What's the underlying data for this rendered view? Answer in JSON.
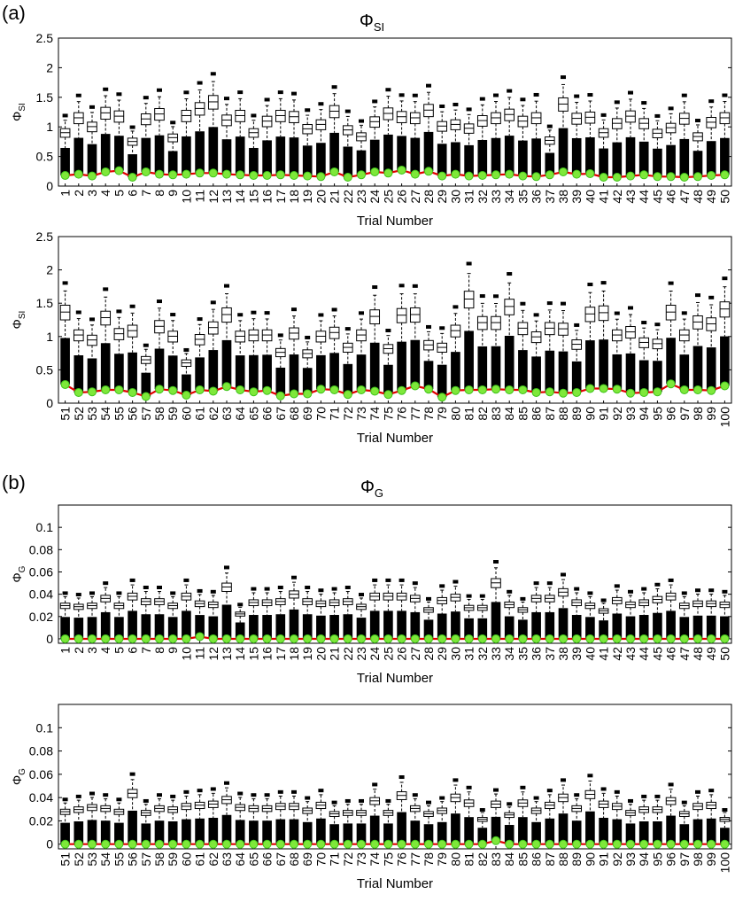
{
  "panels": [
    {
      "label": "(a)",
      "title_main": "Φ",
      "title_sub": "SI"
    },
    {
      "label": "(b)",
      "title_main": "Φ",
      "title_sub": "G"
    }
  ],
  "colors": {
    "box": "#000000",
    "minimum_line": "#e00000",
    "marker_fill": "#7ee83a",
    "marker_edge": "#3fc41a"
  },
  "chart_data": [
    {
      "type": "box",
      "panel": "(a)",
      "ylabel_main": "Φ",
      "ylabel_sub": "SI",
      "xlabel": "Trial Number",
      "ylim": [
        0,
        2.5
      ],
      "yticks": [
        0,
        0.5,
        1,
        1.5,
        2,
        2.5
      ],
      "ytick_labels": [
        "0",
        "0.5",
        "1",
        "1.5",
        "2",
        "2.5"
      ],
      "categories": [
        "1",
        "2",
        "3",
        "4",
        "5",
        "6",
        "7",
        "8",
        "9",
        "10",
        "11",
        "12",
        "13",
        "14",
        "15",
        "16",
        "17",
        "18",
        "19",
        "20",
        "21",
        "22",
        "23",
        "24",
        "25",
        "26",
        "27",
        "28",
        "29",
        "30",
        "31",
        "32",
        "33",
        "34",
        "35",
        "36",
        "37",
        "38",
        "39",
        "40",
        "41",
        "42",
        "43",
        "44",
        "45",
        "46",
        "47",
        "48",
        "49",
        "50"
      ],
      "box_upper": [
        0.97,
        1.24,
        1.08,
        1.33,
        1.27,
        0.81,
        1.22,
        1.31,
        0.88,
        1.28,
        1.41,
        1.53,
        1.2,
        1.28,
        0.97,
        1.18,
        1.28,
        1.26,
        1.04,
        1.12,
        1.36,
        1.02,
        0.9,
        1.17,
        1.32,
        1.26,
        1.24,
        1.38,
        1.09,
        1.12,
        1.05,
        1.19,
        1.24,
        1.3,
        1.18,
        1.24,
        0.83,
        1.49,
        1.23,
        1.25,
        0.97,
        1.14,
        1.27,
        1.14,
        0.96,
        1.06,
        1.23,
        0.9,
        1.16,
        1.24
      ],
      "box_lower": [
        0.18,
        0.2,
        0.17,
        0.24,
        0.26,
        0.15,
        0.24,
        0.2,
        0.19,
        0.2,
        0.22,
        0.22,
        0.2,
        0.19,
        0.18,
        0.18,
        0.19,
        0.18,
        0.17,
        0.16,
        0.24,
        0.15,
        0.19,
        0.24,
        0.22,
        0.27,
        0.2,
        0.25,
        0.17,
        0.2,
        0.17,
        0.18,
        0.19,
        0.2,
        0.17,
        0.16,
        0.19,
        0.24,
        0.2,
        0.21,
        0.15,
        0.15,
        0.17,
        0.19,
        0.16,
        0.16,
        0.15,
        0.16,
        0.18,
        0.19
      ],
      "minimum": [
        0.18,
        0.2,
        0.17,
        0.24,
        0.26,
        0.15,
        0.24,
        0.2,
        0.19,
        0.2,
        0.22,
        0.22,
        0.2,
        0.19,
        0.18,
        0.18,
        0.19,
        0.18,
        0.17,
        0.16,
        0.24,
        0.15,
        0.19,
        0.24,
        0.22,
        0.27,
        0.2,
        0.25,
        0.17,
        0.2,
        0.17,
        0.18,
        0.19,
        0.2,
        0.17,
        0.16,
        0.19,
        0.24,
        0.2,
        0.21,
        0.15,
        0.15,
        0.17,
        0.19,
        0.16,
        0.16,
        0.15,
        0.16,
        0.18,
        0.19
      ]
    },
    {
      "type": "box",
      "panel": "(a)",
      "ylabel_main": "Φ",
      "ylabel_sub": "SI",
      "xlabel": "Trial Number",
      "ylim": [
        0,
        2.5
      ],
      "yticks": [
        0,
        0.5,
        1,
        1.5,
        2,
        2.5
      ],
      "ytick_labels": [
        "0",
        "0.5",
        "1",
        "1.5",
        "2",
        "2.5"
      ],
      "categories": [
        "51",
        "52",
        "53",
        "54",
        "55",
        "56",
        "57",
        "58",
        "59",
        "60",
        "61",
        "62",
        "63",
        "64",
        "65",
        "66",
        "67",
        "68",
        "69",
        "70",
        "71",
        "72",
        "73",
        "74",
        "75",
        "76",
        "77",
        "78",
        "79",
        "80",
        "81",
        "82",
        "83",
        "84",
        "85",
        "86",
        "87",
        "88",
        "89",
        "90",
        "91",
        "92",
        "93",
        "94",
        "95",
        "96",
        "97",
        "98",
        "99",
        "100"
      ],
      "box_upper": [
        1.47,
        1.1,
        1.02,
        1.38,
        1.12,
        1.17,
        0.7,
        1.24,
        1.08,
        0.65,
        1.03,
        1.22,
        1.43,
        1.08,
        1.1,
        1.1,
        0.82,
        1.13,
        0.8,
        1.08,
        1.14,
        0.9,
        1.1,
        1.4,
        0.88,
        1.42,
        1.43,
        0.94,
        0.9,
        1.17,
        1.68,
        1.3,
        1.3,
        1.56,
        1.21,
        1.07,
        1.21,
        1.2,
        0.95,
        1.44,
        1.46,
        1.1,
        1.15,
        0.98,
        0.96,
        1.47,
        1.1,
        1.31,
        1.28,
        1.52
      ],
      "box_lower": [
        0.28,
        0.16,
        0.17,
        0.2,
        0.2,
        0.16,
        0.1,
        0.21,
        0.19,
        0.12,
        0.2,
        0.18,
        0.25,
        0.2,
        0.17,
        0.19,
        0.11,
        0.14,
        0.14,
        0.21,
        0.2,
        0.13,
        0.2,
        0.18,
        0.13,
        0.19,
        0.26,
        0.21,
        0.09,
        0.19,
        0.2,
        0.2,
        0.21,
        0.2,
        0.2,
        0.16,
        0.17,
        0.15,
        0.16,
        0.22,
        0.22,
        0.21,
        0.15,
        0.16,
        0.17,
        0.29,
        0.2,
        0.2,
        0.19,
        0.26
      ],
      "minimum": [
        0.28,
        0.16,
        0.17,
        0.2,
        0.2,
        0.16,
        0.1,
        0.21,
        0.19,
        0.12,
        0.2,
        0.18,
        0.25,
        0.2,
        0.17,
        0.19,
        0.11,
        0.14,
        0.14,
        0.21,
        0.2,
        0.13,
        0.2,
        0.18,
        0.13,
        0.19,
        0.26,
        0.21,
        0.09,
        0.19,
        0.2,
        0.2,
        0.21,
        0.2,
        0.2,
        0.16,
        0.17,
        0.15,
        0.16,
        0.22,
        0.22,
        0.21,
        0.15,
        0.16,
        0.17,
        0.29,
        0.2,
        0.2,
        0.19,
        0.26
      ]
    },
    {
      "type": "box",
      "panel": "(b)",
      "ylabel_main": "Φ",
      "ylabel_sub": "G",
      "xlabel": "Trial Number",
      "ylim": [
        -0.004,
        0.12
      ],
      "yticks": [
        0,
        0.02,
        0.04,
        0.06,
        0.08,
        0.1
      ],
      "ytick_labels": [
        "0",
        "0.02",
        "0.04",
        "0.06",
        "0.08",
        "0.1"
      ],
      "categories": [
        "1",
        "2",
        "3",
        "4",
        "5",
        "6",
        "7",
        "8",
        "9",
        "10",
        "11",
        "12",
        "13",
        "14",
        "15",
        "16",
        "17",
        "18",
        "19",
        "20",
        "21",
        "22",
        "23",
        "24",
        "25",
        "26",
        "27",
        "28",
        "29",
        "30",
        "31",
        "32",
        "33",
        "34",
        "35",
        "36",
        "37",
        "38",
        "39",
        "40",
        "41",
        "42",
        "43",
        "44",
        "45",
        "46",
        "47",
        "48",
        "49",
        "50"
      ],
      "box_upper": [
        0.032,
        0.031,
        0.032,
        0.039,
        0.032,
        0.041,
        0.036,
        0.036,
        0.032,
        0.041,
        0.034,
        0.033,
        0.05,
        0.024,
        0.035,
        0.035,
        0.036,
        0.043,
        0.036,
        0.034,
        0.035,
        0.036,
        0.031,
        0.041,
        0.041,
        0.041,
        0.039,
        0.028,
        0.037,
        0.04,
        0.03,
        0.03,
        0.054,
        0.033,
        0.028,
        0.039,
        0.039,
        0.045,
        0.035,
        0.032,
        0.027,
        0.037,
        0.033,
        0.035,
        0.038,
        0.041,
        0.032,
        0.034,
        0.034,
        0.033
      ],
      "box_lower": [
        0,
        0,
        0,
        0,
        0,
        0,
        0,
        0,
        0,
        0,
        0.002,
        0,
        0,
        0,
        0,
        0,
        0,
        0,
        0,
        0,
        0,
        0,
        0,
        0,
        0,
        0,
        0,
        0,
        0,
        0,
        0,
        0,
        0,
        0,
        0,
        0,
        0,
        0,
        0,
        0,
        0,
        0,
        0,
        0,
        0,
        0,
        0,
        0,
        0,
        0
      ],
      "minimum": [
        0,
        0,
        0,
        0,
        0,
        0,
        0,
        0,
        0,
        0,
        0.002,
        0,
        0,
        0,
        0,
        0,
        0,
        0,
        0,
        0,
        0,
        0,
        0,
        0,
        0,
        0,
        0,
        0,
        0,
        0,
        0,
        0,
        0,
        0,
        0,
        0,
        0,
        0,
        0,
        0,
        0,
        0,
        0,
        0,
        0,
        0,
        0,
        0,
        0,
        0
      ]
    },
    {
      "type": "box",
      "panel": "(b)",
      "ylabel_main": "Φ",
      "ylabel_sub": "G",
      "xlabel": "Trial Number",
      "ylim": [
        -0.004,
        0.12
      ],
      "yticks": [
        0,
        0.02,
        0.04,
        0.06,
        0.08,
        0.1
      ],
      "ytick_labels": [
        "0",
        "0.02",
        "0.04",
        "0.06",
        "0.08",
        "0.1"
      ],
      "categories": [
        "51",
        "52",
        "53",
        "54",
        "55",
        "56",
        "57",
        "58",
        "59",
        "60",
        "61",
        "62",
        "63",
        "64",
        "65",
        "66",
        "67",
        "68",
        "69",
        "70",
        "71",
        "72",
        "73",
        "74",
        "75",
        "76",
        "77",
        "78",
        "79",
        "80",
        "81",
        "82",
        "83",
        "84",
        "85",
        "86",
        "87",
        "88",
        "89",
        "90",
        "91",
        "92",
        "93",
        "94",
        "95",
        "96",
        "97",
        "98",
        "99",
        "100"
      ],
      "box_upper": [
        0.03,
        0.032,
        0.034,
        0.033,
        0.03,
        0.047,
        0.029,
        0.033,
        0.032,
        0.035,
        0.036,
        0.037,
        0.041,
        0.034,
        0.033,
        0.033,
        0.035,
        0.035,
        0.031,
        0.036,
        0.028,
        0.029,
        0.029,
        0.04,
        0.029,
        0.045,
        0.033,
        0.028,
        0.031,
        0.043,
        0.038,
        0.023,
        0.037,
        0.027,
        0.038,
        0.031,
        0.036,
        0.043,
        0.033,
        0.046,
        0.037,
        0.035,
        0.029,
        0.032,
        0.032,
        0.04,
        0.028,
        0.035,
        0.036,
        0.023
      ],
      "box_lower": [
        0,
        0,
        0,
        0,
        0,
        0,
        0,
        0,
        0,
        0,
        0,
        0,
        0,
        0,
        0,
        0,
        0,
        0,
        0,
        0,
        0,
        0,
        0,
        0,
        0,
        0,
        0,
        0,
        0,
        0,
        0,
        0,
        0.003,
        0,
        0,
        0,
        0,
        0,
        0,
        0,
        0,
        0,
        0,
        0,
        0,
        0,
        0,
        0,
        0,
        0
      ],
      "minimum": [
        0,
        0,
        0,
        0,
        0,
        0,
        0,
        0,
        0,
        0,
        0,
        0,
        0,
        0,
        0,
        0,
        0,
        0,
        0,
        0,
        0,
        0,
        0,
        0,
        0,
        0,
        0,
        0,
        0,
        0,
        0,
        0,
        0.003,
        0,
        0,
        0,
        0,
        0,
        0,
        0,
        0,
        0,
        0,
        0,
        0,
        0,
        0,
        0,
        0,
        0
      ]
    }
  ]
}
